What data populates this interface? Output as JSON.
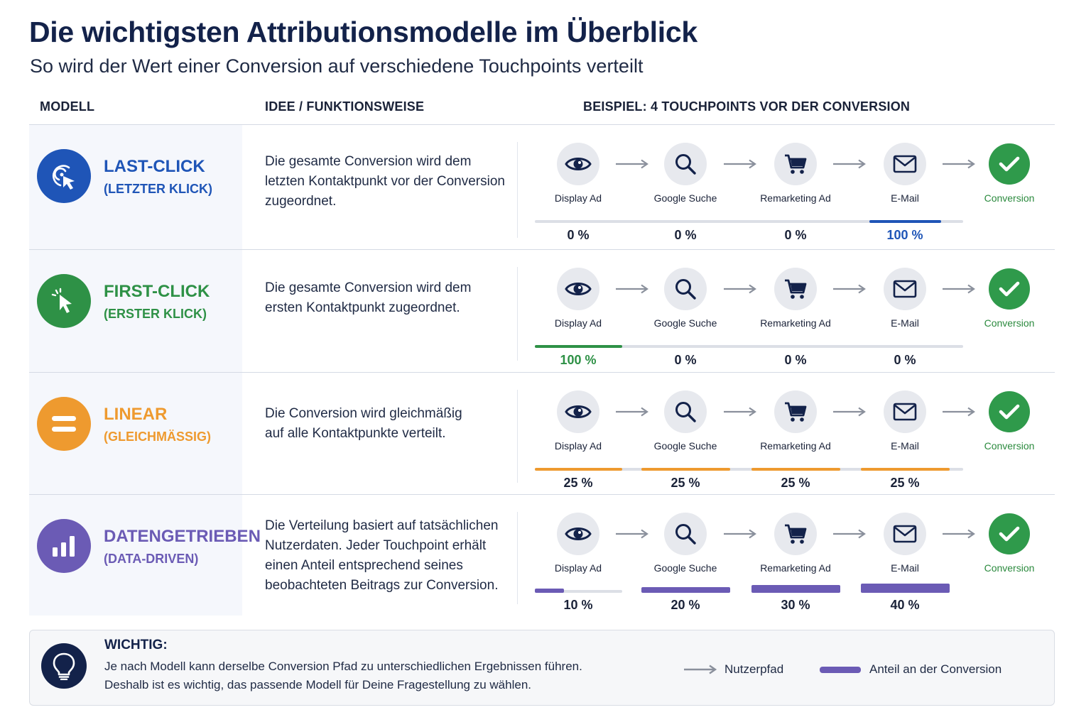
{
  "title": "Die wichtigsten Attributionsmodelle im Überblick",
  "subtitle": "So wird der Wert einer Conversion auf verschiedene Touchpoints verteilt",
  "columns": {
    "model": "MODELL",
    "idea": "IDEE / FUNKTIONSWEISE",
    "example": "BEISPIEL: 4 TOUCHPOINTS VOR DER CONVERSION"
  },
  "touchpoints": [
    {
      "label": "Display Ad",
      "icon": "eye-icon"
    },
    {
      "label": "Google Suche",
      "icon": "magnifier-icon"
    },
    {
      "label": "Remarketing Ad",
      "icon": "shopping-cart-icon"
    },
    {
      "label": "E-Mail",
      "icon": "envelope-icon"
    }
  ],
  "conversion": {
    "label": "Conversion",
    "icon": "checkmark-icon",
    "color": "#2f9a4b"
  },
  "models": [
    {
      "key": "last-click",
      "name": "LAST-CLICK",
      "sub": "(LETZTER KLICK)",
      "color": "#1f55b7",
      "icon": "click-target-icon",
      "description": "Die gesamte Conversion wird dem letzten Kontaktpunkt vor der Conversion zugeordnet.",
      "shares": [
        {
          "label": "0 %",
          "value": 0
        },
        {
          "label": "0 %",
          "value": 0
        },
        {
          "label": "0 %",
          "value": 0
        },
        {
          "label": "100 %",
          "value": 100
        }
      ]
    },
    {
      "key": "first-click",
      "name": "FIRST-CLICK",
      "sub": "(ERSTER KLICK)",
      "color": "#2e9146",
      "icon": "cursor-icon",
      "description": "Die gesamte Conversion wird dem ersten Kontaktpunkt zugeordnet.",
      "shares": [
        {
          "label": "100 %",
          "value": 100
        },
        {
          "label": "0 %",
          "value": 0
        },
        {
          "label": "0 %",
          "value": 0
        },
        {
          "label": "0 %",
          "value": 0
        }
      ]
    },
    {
      "key": "linear",
      "name": "LINEAR",
      "sub": "(GLEICHMÄSSIG)",
      "color": "#ee9a2f",
      "icon": "equals-icon",
      "description": "Die Conversion wird gleichmäßig auf alle Kontaktpunkte verteilt.",
      "shares": [
        {
          "label": "25 %",
          "value": 25
        },
        {
          "label": "25 %",
          "value": 25
        },
        {
          "label": "25 %",
          "value": 25
        },
        {
          "label": "25 %",
          "value": 25
        }
      ]
    },
    {
      "key": "data-driven",
      "name": "DATENGETRIEBEN",
      "sub": "(DATA-DRIVEN)",
      "color": "#6b5bb5",
      "icon": "bar-chart-icon",
      "description": "Die Verteilung basiert auf tatsächlichen Nutzerdaten. Jeder Touchpoint erhält einen Anteil entsprechend seines beobachteten Beitrags zur Conversion.",
      "shares": [
        {
          "label": "10 %",
          "value": 10
        },
        {
          "label": "20 %",
          "value": 20
        },
        {
          "label": "30 %",
          "value": 30
        },
        {
          "label": "40 %",
          "value": 40
        }
      ]
    }
  ],
  "note": {
    "heading": "WICHTIG:",
    "line1": "Je nach Modell kann derselbe Conversion Pfad zu unterschiedlichen Ergebnissen führen.",
    "line2": "Deshalb ist es wichtig, das passende Modell für Deine Fragestellung zu wählen.",
    "icon": "lightbulb-icon"
  },
  "legend": {
    "path_label": "Nutzerpfad",
    "share_label": "Anteil an der Conversion"
  }
}
